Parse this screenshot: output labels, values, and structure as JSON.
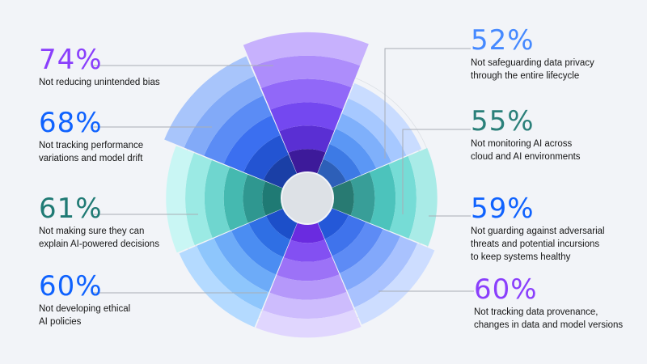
{
  "chart_data": {
    "type": "radial-bar",
    "segments": [
      {
        "value": 52,
        "label": "52%",
        "desc": [
          "Not safeguarding data privacy",
          "through the entire lifecycle"
        ],
        "color": "#4589ff",
        "colors": [
          "#2d5fb8",
          "#3d7ae5",
          "#5b97f5",
          "#7fb0fb",
          "#a6c8ff",
          "#c9dcff"
        ]
      },
      {
        "value": 55,
        "label": "55%",
        "desc": [
          "Not monitoring AI across",
          "cloud and AI environments"
        ],
        "color": "#2b807a",
        "colors": [
          "#287a72",
          "#389e98",
          "#4cc3bc",
          "#76dcd6",
          "#a9ebe7"
        ]
      },
      {
        "value": 59,
        "label": "59%",
        "desc": [
          "Not guarding against adversarial",
          "threats and potential incursions",
          "to keep systems healthy"
        ],
        "color": "#0f62fe",
        "colors": [
          "#2458d8",
          "#3f73ec",
          "#5d8bf5",
          "#82a8fb",
          "#a9c2fe",
          "#cdddff"
        ]
      },
      {
        "value": 60,
        "label": "60%",
        "desc": [
          "Not tracking data provenance,",
          "changes in data and model versions"
        ],
        "color": "#8a3ffc",
        "colors": [
          "#6a2be0",
          "#8350f2",
          "#9c72f7",
          "#b598fa",
          "#cdbcfd",
          "#e0d6fe"
        ]
      },
      {
        "value": 60,
        "label": "60%",
        "desc": [
          "Not developing ethical",
          "AI policies"
        ],
        "color": "#0f62fe",
        "colors": [
          "#1c4fc9",
          "#2f6fe4",
          "#4b8df2",
          "#6dabf8",
          "#8ec6fc",
          "#b4daff"
        ]
      },
      {
        "value": 61,
        "label": "61%",
        "desc": [
          "Not making sure they can",
          "explain AI-powered decisions"
        ],
        "color": "#1f7a74",
        "colors": [
          "#1f7a74",
          "#2f9790",
          "#45b9b0",
          "#6fd6cf",
          "#9beae4",
          "#c9f6f4"
        ]
      },
      {
        "value": 68,
        "label": "68%",
        "desc": [
          "Not tracking performance",
          "variations and model drift"
        ],
        "color": "#0f62fe",
        "colors": [
          "#1a3fa6",
          "#2354d2",
          "#3b6ff0",
          "#5b8cf5",
          "#82aaf8",
          "#a8c5fb"
        ]
      },
      {
        "value": 74,
        "label": "74%",
        "desc": [
          "Not reducing unintended bias"
        ],
        "color": "#8a3ffc",
        "colors": [
          "#3d1a9a",
          "#5a2fd3",
          "#7448f0",
          "#9168f8",
          "#ad8dfb",
          "#c7b1fd"
        ]
      }
    ]
  }
}
